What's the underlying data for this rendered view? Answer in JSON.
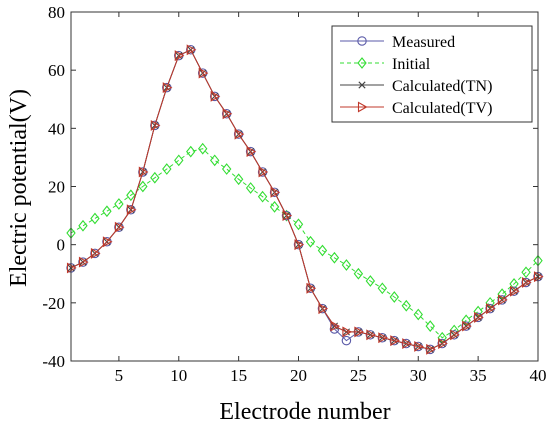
{
  "chart_data": {
    "type": "line",
    "title": "",
    "xlabel": "Electrode number",
    "ylabel": "Electric potential(V)",
    "xlim": [
      1,
      40
    ],
    "ylim": [
      -40,
      80
    ],
    "xticks": [
      5,
      10,
      15,
      20,
      25,
      30,
      35,
      40
    ],
    "yticks": [
      -40,
      -20,
      0,
      20,
      40,
      60,
      80
    ],
    "grid": false,
    "legend_position": "top-right",
    "x": [
      1,
      2,
      3,
      4,
      5,
      6,
      7,
      8,
      9,
      10,
      11,
      12,
      13,
      14,
      15,
      16,
      17,
      18,
      19,
      20,
      21,
      22,
      23,
      24,
      25,
      26,
      27,
      28,
      29,
      30,
      31,
      32,
      33,
      34,
      35,
      36,
      37,
      38,
      39,
      40
    ],
    "series": [
      {
        "name": "Measured",
        "color": "#5a5aa8",
        "line": "solid",
        "marker": "circle",
        "values": [
          -8,
          -6,
          -3,
          1,
          6,
          12,
          25,
          41,
          54,
          65,
          67,
          59,
          51,
          45,
          38,
          32,
          25,
          18,
          10,
          0,
          -15,
          -22,
          -29,
          -33,
          -30,
          -31,
          -32,
          -33,
          -34,
          -35,
          -36,
          -34,
          -31,
          -28,
          -25,
          -22,
          -19,
          -16,
          -13,
          -11
        ]
      },
      {
        "name": "Initial",
        "color": "#33dd33",
        "line": "dashed",
        "marker": "diamond",
        "values": [
          4,
          6.5,
          9,
          11.5,
          14,
          17,
          20,
          23,
          26,
          29,
          32,
          33,
          29,
          26,
          22.5,
          19.5,
          16.5,
          13,
          10,
          7,
          1,
          -2,
          -4.5,
          -7,
          -10,
          -12.5,
          -15,
          -18,
          -21,
          -24,
          -28,
          -32,
          -29.5,
          -26,
          -23,
          -20,
          -17,
          -13.5,
          -9.5,
          -5.5
        ]
      },
      {
        "name": "Calculated(TN)",
        "color": "#444444",
        "line": "solid",
        "marker": "x",
        "values": [
          -8,
          -6,
          -3,
          1,
          6,
          12,
          25,
          41,
          54,
          65,
          67,
          59,
          51,
          45,
          38,
          32,
          25,
          18,
          10,
          0,
          -15,
          -22,
          -28,
          -30,
          -30,
          -31,
          -32,
          -33,
          -34,
          -35,
          -36,
          -34,
          -31,
          -28,
          -25,
          -22,
          -19,
          -16,
          -13,
          -11
        ]
      },
      {
        "name": "Calculated(TV)",
        "color": "#c0392b",
        "line": "solid",
        "marker": "triangle-right",
        "values": [
          -8,
          -6,
          -3,
          1,
          6,
          12,
          25,
          41,
          54,
          65,
          67,
          59,
          51,
          45,
          38,
          32,
          25,
          18,
          10,
          0,
          -15,
          -22,
          -28,
          -30,
          -30,
          -31,
          -32,
          -33,
          -34,
          -35,
          -36,
          -34,
          -31,
          -28,
          -25,
          -22,
          -19,
          -16,
          -13,
          -11
        ]
      }
    ]
  }
}
